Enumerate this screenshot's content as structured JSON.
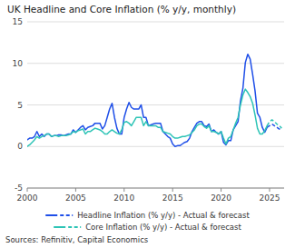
{
  "chart_data": {
    "type": "line",
    "title": "UK Headline and Core Inflation (% y/y, monthly)",
    "annotations": [
      "Sources: Refinitiv, Capital Economics"
    ],
    "xlim": [
      2000,
      2026.5
    ],
    "xticks": [
      2000,
      2005,
      2010,
      2015,
      2020,
      2025
    ],
    "ylim": [
      -5,
      15
    ],
    "yticks": [
      -5,
      0,
      5,
      10,
      15
    ],
    "grid": true,
    "legend": "bottom",
    "series": [
      {
        "name": "Headline Inflation (% y/y) - Actual & forecast",
        "color": "#1f4fe8",
        "line_style": "solid",
        "x": [
          2000.0,
          2000.25,
          2000.5,
          2000.75,
          2001.0,
          2001.25,
          2001.5,
          2001.75,
          2002.0,
          2002.25,
          2002.5,
          2002.75,
          2003.0,
          2003.25,
          2003.5,
          2003.75,
          2004.0,
          2004.25,
          2004.5,
          2004.75,
          2005.0,
          2005.25,
          2005.5,
          2005.75,
          2006.0,
          2006.25,
          2006.5,
          2006.75,
          2007.0,
          2007.25,
          2007.5,
          2007.75,
          2008.0,
          2008.25,
          2008.5,
          2008.75,
          2009.0,
          2009.25,
          2009.5,
          2009.75,
          2010.0,
          2010.25,
          2010.5,
          2010.75,
          2011.0,
          2011.25,
          2011.5,
          2011.75,
          2012.0,
          2012.25,
          2012.5,
          2012.75,
          2013.0,
          2013.25,
          2013.5,
          2013.75,
          2014.0,
          2014.25,
          2014.5,
          2014.75,
          2015.0,
          2015.25,
          2015.5,
          2015.75,
          2016.0,
          2016.25,
          2016.5,
          2016.75,
          2017.0,
          2017.25,
          2017.5,
          2017.75,
          2018.0,
          2018.25,
          2018.5,
          2018.75,
          2019.0,
          2019.25,
          2019.5,
          2019.75,
          2020.0,
          2020.25,
          2020.5,
          2020.75,
          2021.0,
          2021.25,
          2021.5,
          2021.75,
          2022.0,
          2022.25,
          2022.5,
          2022.75,
          2023.0,
          2023.25,
          2023.5,
          2023.75,
          2024.0,
          2024.25,
          2024.5,
          2024.75
        ],
        "values": [
          0.8,
          1.0,
          1.0,
          1.2,
          1.8,
          1.2,
          1.5,
          1.2,
          1.5,
          1.5,
          1.2,
          1.3,
          1.3,
          1.4,
          1.4,
          1.3,
          1.4,
          1.5,
          1.5,
          2.0,
          1.7,
          2.0,
          2.3,
          2.5,
          2.0,
          2.3,
          2.4,
          2.5,
          2.8,
          2.8,
          2.8,
          2.1,
          2.5,
          3.5,
          4.5,
          5.2,
          3.5,
          2.2,
          1.5,
          1.5,
          3.5,
          4.5,
          5.3,
          4.7,
          4.5,
          4.5,
          4.5,
          5.0,
          3.5,
          3.5,
          2.5,
          2.6,
          2.7,
          2.8,
          2.8,
          2.8,
          1.8,
          1.5,
          1.2,
          1.0,
          0.3,
          0.0,
          0.1,
          0.1,
          0.3,
          0.5,
          0.6,
          1.0,
          1.8,
          2.3,
          2.8,
          3.0,
          3.0,
          2.5,
          2.4,
          2.7,
          1.8,
          2.0,
          1.7,
          1.5,
          1.8,
          0.5,
          0.2,
          0.7,
          0.7,
          2.0,
          2.5,
          3.0,
          5.5,
          7.0,
          10.1,
          11.1,
          10.5,
          8.7,
          6.7,
          4.0,
          3.5,
          2.3,
          1.7,
          2.3
        ]
      },
      {
        "color": "#1f4fe8",
        "line_style": "dashed",
        "x": [
          2024.75,
          2025.0,
          2025.25,
          2025.5,
          2025.75,
          2026.0,
          2026.25
        ],
        "values": [
          2.3,
          2.5,
          2.7,
          2.5,
          2.3,
          2.1,
          2.0
        ]
      },
      {
        "name": "Core Inflation (% y/y) - Actual & forecast",
        "color": "#2ec4b6",
        "line_style": "solid",
        "x": [
          2000.0,
          2000.25,
          2000.5,
          2000.75,
          2001.0,
          2001.25,
          2001.5,
          2001.75,
          2002.0,
          2002.25,
          2002.5,
          2002.75,
          2003.0,
          2003.25,
          2003.5,
          2003.75,
          2004.0,
          2004.25,
          2004.5,
          2004.75,
          2005.0,
          2005.25,
          2005.5,
          2005.75,
          2006.0,
          2006.25,
          2006.5,
          2006.75,
          2007.0,
          2007.25,
          2007.5,
          2007.75,
          2008.0,
          2008.25,
          2008.5,
          2008.75,
          2009.0,
          2009.25,
          2009.5,
          2009.75,
          2010.0,
          2010.25,
          2010.5,
          2010.75,
          2011.0,
          2011.25,
          2011.5,
          2011.75,
          2012.0,
          2012.25,
          2012.5,
          2012.75,
          2013.0,
          2013.25,
          2013.5,
          2013.75,
          2014.0,
          2014.25,
          2014.5,
          2014.75,
          2015.0,
          2015.25,
          2015.5,
          2015.75,
          2016.0,
          2016.25,
          2016.5,
          2016.75,
          2017.0,
          2017.25,
          2017.5,
          2017.75,
          2018.0,
          2018.25,
          2018.5,
          2018.75,
          2019.0,
          2019.25,
          2019.5,
          2019.75,
          2020.0,
          2020.25,
          2020.5,
          2020.75,
          2021.0,
          2021.25,
          2021.5,
          2021.75,
          2022.0,
          2022.25,
          2022.5,
          2022.75,
          2023.0,
          2023.25,
          2023.5,
          2023.75,
          2024.0,
          2024.25,
          2024.5,
          2024.75
        ],
        "values": [
          0.0,
          0.2,
          0.5,
          0.8,
          1.2,
          1.0,
          1.2,
          1.3,
          1.5,
          1.5,
          1.2,
          1.3,
          1.3,
          1.2,
          1.3,
          1.3,
          1.3,
          1.4,
          1.5,
          1.8,
          1.7,
          1.9,
          2.0,
          2.1,
          1.5,
          1.8,
          1.8,
          2.0,
          2.2,
          2.1,
          2.0,
          1.8,
          1.5,
          1.5,
          1.8,
          2.0,
          1.8,
          1.6,
          1.5,
          2.0,
          2.9,
          3.0,
          2.8,
          2.5,
          3.0,
          3.5,
          3.5,
          3.5,
          2.5,
          3.0,
          2.5,
          2.5,
          2.5,
          2.5,
          2.3,
          2.3,
          1.8,
          1.7,
          1.6,
          1.5,
          1.2,
          1.0,
          1.0,
          1.1,
          1.2,
          1.2,
          1.3,
          1.4,
          1.7,
          2.0,
          2.5,
          2.7,
          2.7,
          2.4,
          2.2,
          2.5,
          1.8,
          1.8,
          1.7,
          1.5,
          1.8,
          1.0,
          0.3,
          1.0,
          1.2,
          2.0,
          2.8,
          3.5,
          5.0,
          6.2,
          6.9,
          6.5,
          6.0,
          5.2,
          3.8,
          2.2,
          1.5,
          1.5,
          1.9,
          2.5
        ]
      },
      {
        "color": "#2ec4b6",
        "line_style": "dashed",
        "x": [
          2024.75,
          2025.0,
          2025.25,
          2025.5,
          2025.75,
          2026.0,
          2026.25
        ],
        "values": [
          2.5,
          3.0,
          3.2,
          3.0,
          2.7,
          2.5,
          2.2
        ]
      }
    ]
  }
}
